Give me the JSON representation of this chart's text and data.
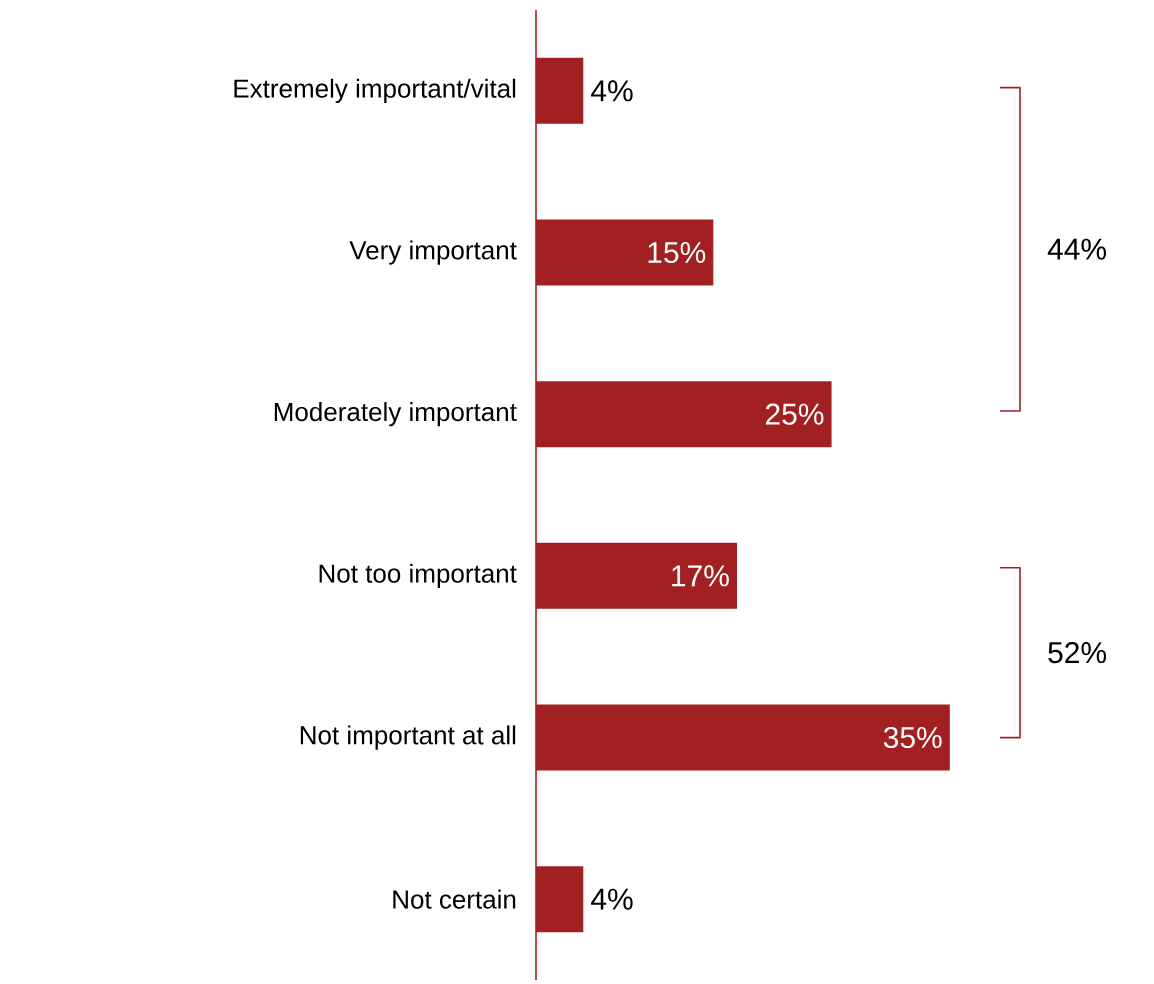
{
  "chart_data": {
    "type": "bar",
    "orientation": "horizontal",
    "categories": [
      "Extremely important/vital",
      "Very important",
      "Moderately important",
      "Not too important",
      "Not important at all",
      "Not certain"
    ],
    "values": [
      4,
      15,
      25,
      17,
      35,
      4
    ],
    "value_labels": [
      "4%",
      "15%",
      "25%",
      "17%",
      "35%",
      "4%"
    ],
    "color": "#a32022",
    "annotations": [
      "44%",
      "52%"
    ]
  }
}
